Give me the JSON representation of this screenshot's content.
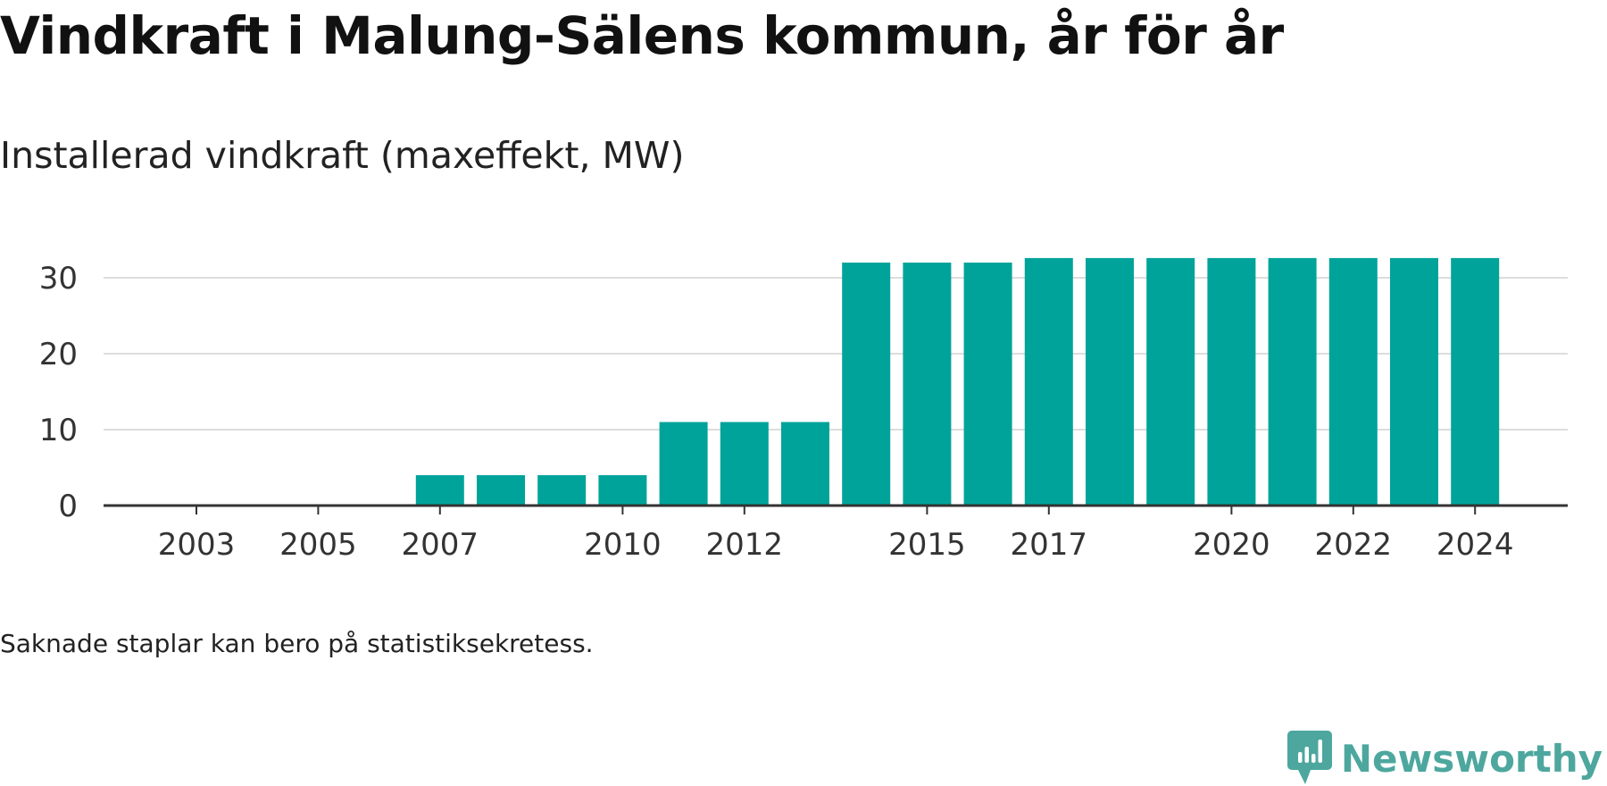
{
  "title": "Vindkraft i Malung-Sälens kommun, år för år",
  "subtitle": "Installerad vindkraft (maxeffekt, MW)",
  "footnote": "Saknade staplar kan bero på statistiksekretess.",
  "brand": {
    "name": "Newsworthy",
    "icon": "newsworthy-logo-icon",
    "color": "#4da79e"
  },
  "colors": {
    "bar": "#00a39a",
    "grid": "#dddddd",
    "axis": "#333333",
    "text": "#333333"
  },
  "chart_data": {
    "type": "bar",
    "categories": [
      "2003",
      "2004",
      "2005",
      "2006",
      "2007",
      "2008",
      "2009",
      "2010",
      "2011",
      "2012",
      "2013",
      "2014",
      "2015",
      "2016",
      "2017",
      "2018",
      "2019",
      "2020",
      "2021",
      "2022",
      "2023",
      "2024"
    ],
    "values": [
      0,
      0,
      0,
      0,
      4,
      4,
      4,
      4,
      11,
      11,
      11,
      32,
      32,
      32,
      32.6,
      32.6,
      32.6,
      32.6,
      32.6,
      32.6,
      32.6,
      32.6
    ],
    "x_tick_labels": [
      "2003",
      "2005",
      "2007",
      "2010",
      "2012",
      "2015",
      "2017",
      "2020",
      "2022",
      "2024"
    ],
    "y_ticks": [
      0,
      10,
      20,
      30
    ],
    "ylim": [
      0,
      34
    ],
    "grid": true,
    "legend": false
  }
}
